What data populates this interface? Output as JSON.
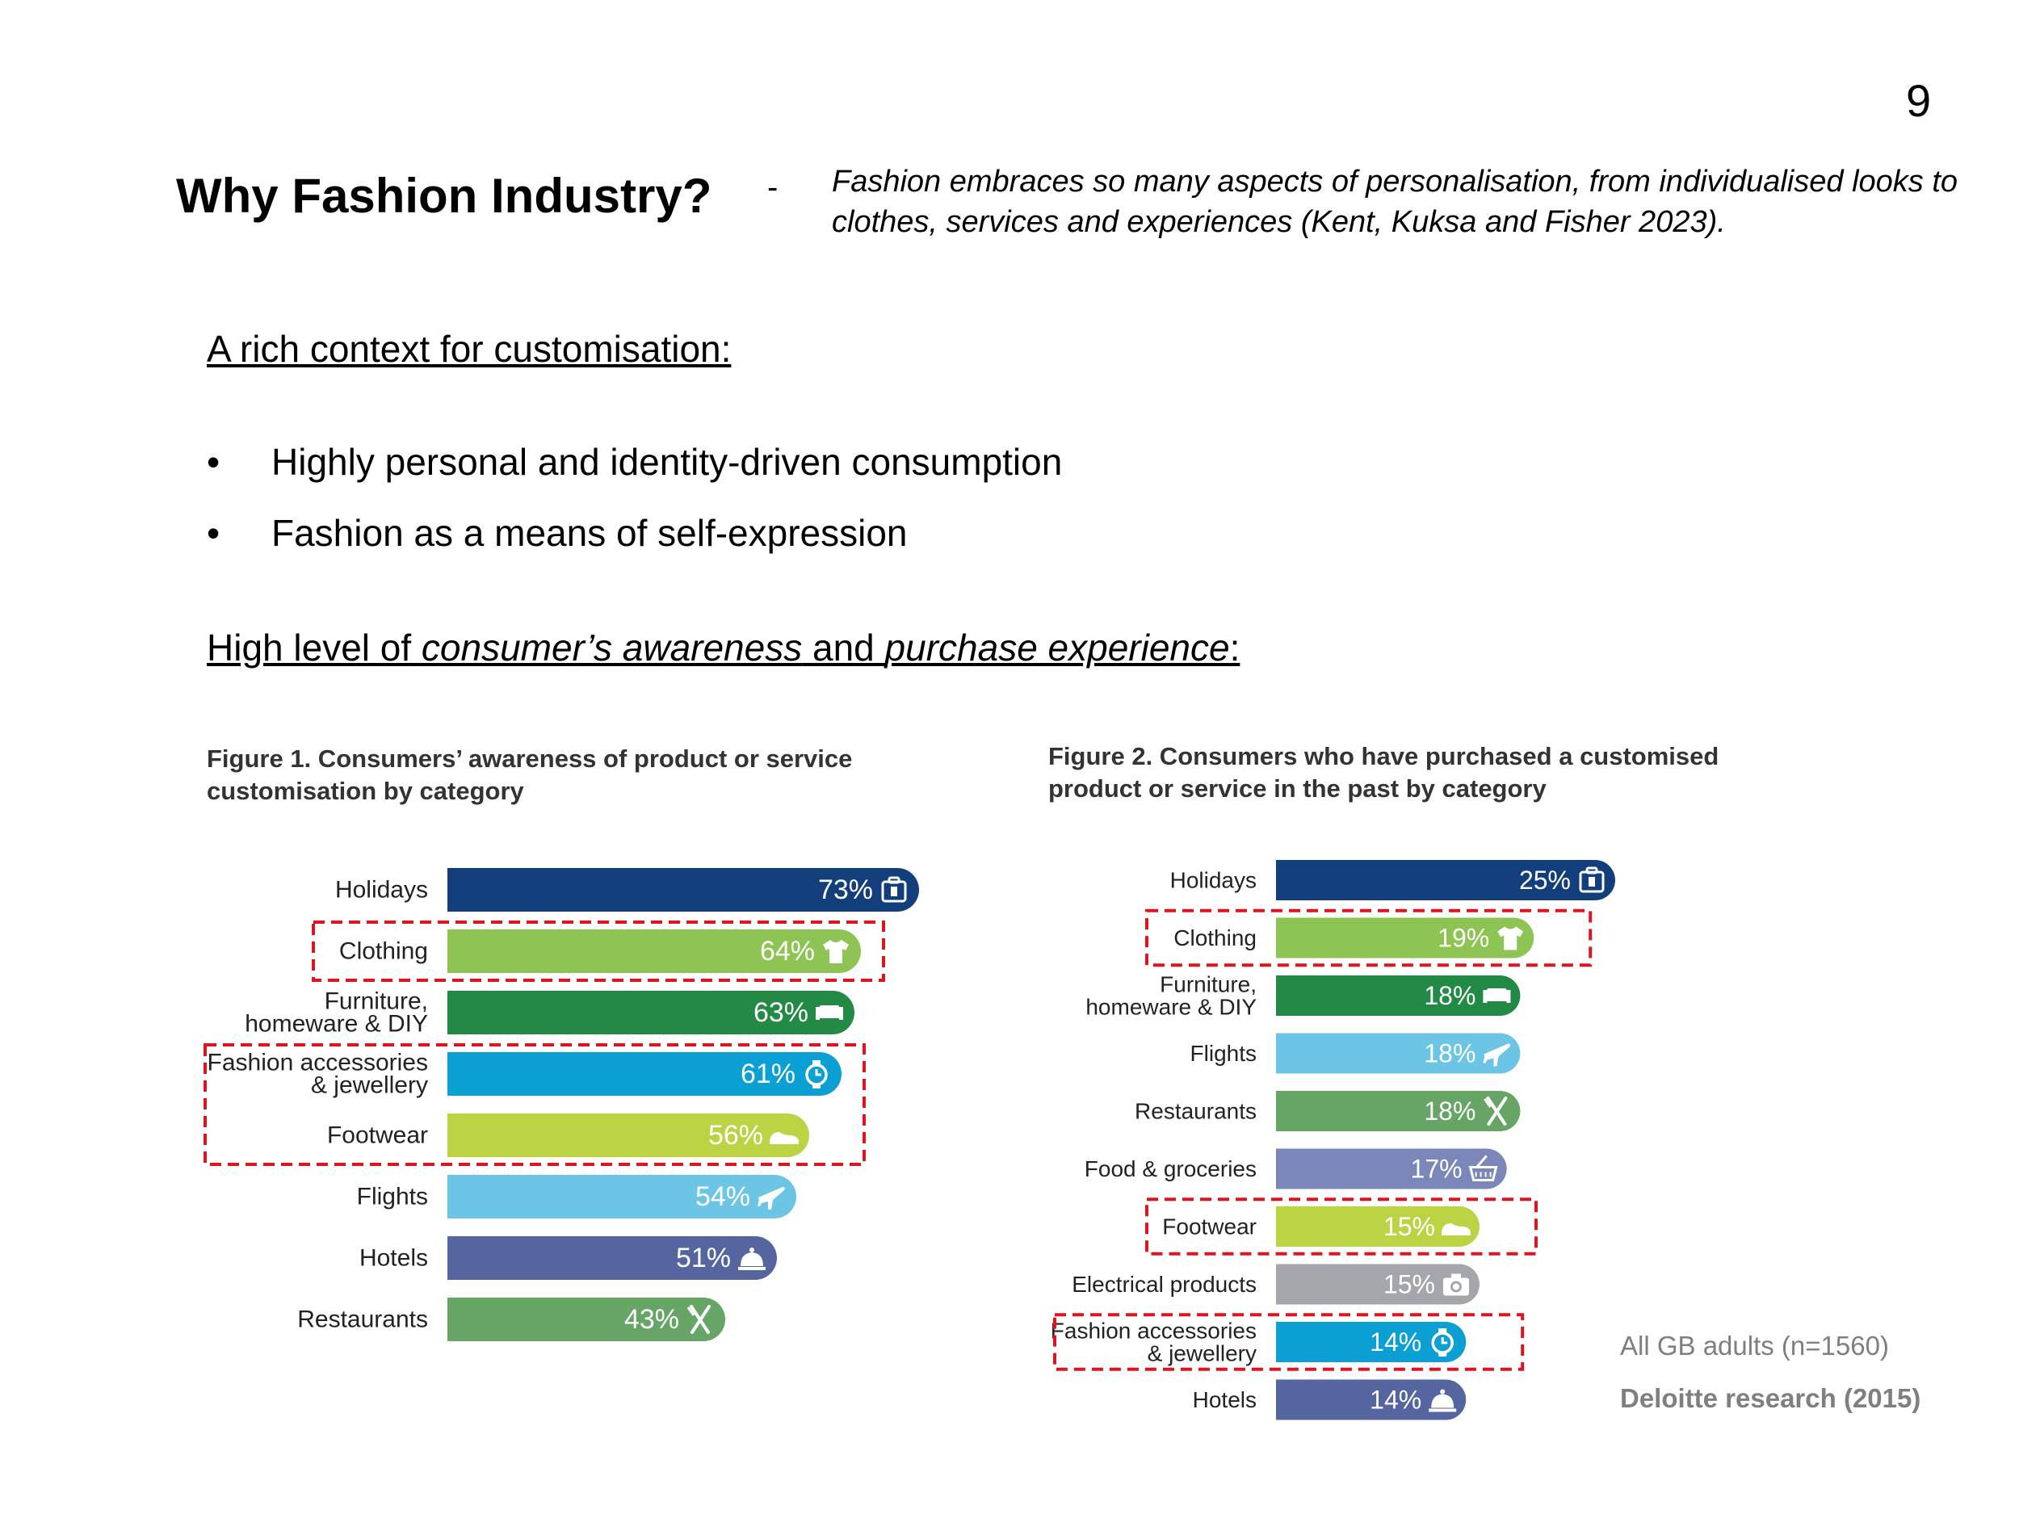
{
  "page_number": "9",
  "title": "Why Fashion Industry?",
  "dash": "-",
  "quote": "Fashion embraces so many aspects of personalisation, from individualised looks to clothes, services and experiences (Kent, Kuksa and Fisher 2023).",
  "section1": "A rich context for customisation:",
  "bullets": [
    "Highly personal and identity-driven consumption",
    "Fashion as a means of self-expression"
  ],
  "section2": {
    "part1": "High level of ",
    "italic1": "consumer’s awareness",
    "part2": " and ",
    "italic2": "purchase experience",
    "part3": ":"
  },
  "colors": {
    "highlight_box": "#e0141e",
    "value_text": "#ffffff"
  },
  "chart_data": [
    {
      "type": "bar",
      "orientation": "horizontal",
      "title": "Figure 1. Consumers’ awareness of product or service customisation by category",
      "categories": [
        {
          "label": [
            "Holidays"
          ],
          "value": 73,
          "label_text": "73%",
          "color": "#123f7b",
          "icon": "suitcase-icon"
        },
        {
          "label": [
            "Clothing"
          ],
          "value": 64,
          "label_text": "64%",
          "color": "#8dc453",
          "icon": "tshirt-icon"
        },
        {
          "label": [
            "Furniture,",
            "homeware & DIY"
          ],
          "value": 63,
          "label_text": "63%",
          "color": "#238a45",
          "icon": "sofa-icon"
        },
        {
          "label": [
            "Fashion accessories",
            "& jewellery"
          ],
          "value": 61,
          "label_text": "61%",
          "color": "#0ba0d3",
          "icon": "watch-icon"
        },
        {
          "label": [
            "Footwear"
          ],
          "value": 56,
          "label_text": "56%",
          "color": "#bcd444",
          "icon": "shoe-icon"
        },
        {
          "label": [
            "Flights"
          ],
          "value": 54,
          "label_text": "54%",
          "color": "#6dc5e6",
          "icon": "plane-icon"
        },
        {
          "label": [
            "Hotels"
          ],
          "value": 51,
          "label_text": "51%",
          "color": "#55659f",
          "icon": "bell-icon"
        },
        {
          "label": [
            "Restaurants"
          ],
          "value": 43,
          "label_text": "43%",
          "color": "#67a566",
          "icon": "cutlery-icon"
        }
      ],
      "highlights": [
        [
          1,
          1
        ],
        [
          3,
          4
        ]
      ]
    },
    {
      "type": "bar",
      "orientation": "horizontal",
      "title": "Figure 2. Consumers who have purchased a customised product or service in the past by category",
      "categories": [
        {
          "label": [
            "Holidays"
          ],
          "value": 25,
          "label_text": "25%",
          "color": "#123f7b",
          "icon": "suitcase-icon"
        },
        {
          "label": [
            "Clothing"
          ],
          "value": 19,
          "label_text": "19%",
          "color": "#8dc453",
          "icon": "tshirt-icon"
        },
        {
          "label": [
            "Furniture,",
            "homeware & DIY"
          ],
          "value": 18,
          "label_text": "18%",
          "color": "#238a45",
          "icon": "sofa-icon"
        },
        {
          "label": [
            "Flights"
          ],
          "value": 18,
          "label_text": "18%",
          "color": "#6dc5e6",
          "icon": "plane-icon"
        },
        {
          "label": [
            "Restaurants"
          ],
          "value": 18,
          "label_text": "18%",
          "color": "#67a566",
          "icon": "cutlery-icon"
        },
        {
          "label": [
            "Food & groceries"
          ],
          "value": 17,
          "label_text": "17%",
          "color": "#7b86b9",
          "icon": "basket-icon"
        },
        {
          "label": [
            "Footwear"
          ],
          "value": 15,
          "label_text": "15%",
          "color": "#bcd444",
          "icon": "shoe-icon"
        },
        {
          "label": [
            "Electrical products"
          ],
          "value": 15,
          "label_text": "15%",
          "color": "#a4a6ab",
          "icon": "camera-icon"
        },
        {
          "label": [
            "Fashion accessories",
            "& jewellery"
          ],
          "value": 14,
          "label_text": "14%",
          "color": "#0ba0d3",
          "icon": "watch-icon"
        },
        {
          "label": [
            "Hotels"
          ],
          "value": 14,
          "label_text": "14%",
          "color": "#55659f",
          "icon": "bell-icon"
        }
      ],
      "highlights": [
        [
          1,
          1
        ],
        [
          6,
          6
        ],
        [
          8,
          8
        ]
      ]
    }
  ],
  "notes": {
    "sample": "All GB adults (n=1560)",
    "source": "Deloitte research (2015)"
  }
}
